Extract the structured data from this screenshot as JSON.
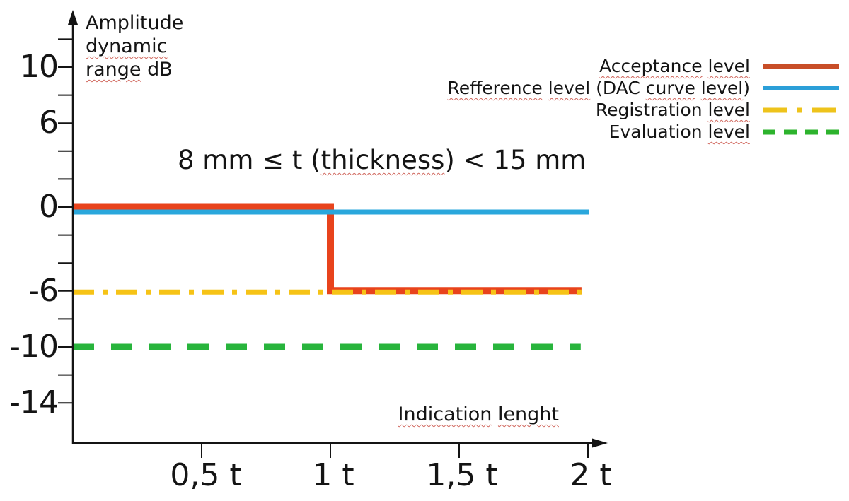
{
  "annotation": {
    "prefix": "8 mm ≤ t (",
    "word": "thickness",
    "suffix": ") < 15 mm"
  },
  "y_axis": {
    "title_line1": "Amplitude",
    "title_line2": "dynamic",
    "title_line3_word": "range",
    "title_line3_rest": " dB",
    "tick_labels": [
      "10",
      "6",
      "0",
      "-6",
      "-10",
      "-14"
    ]
  },
  "x_axis": {
    "tick_labels": [
      "0,5 t",
      "1 t",
      "1,5 t",
      "2 t"
    ],
    "label_word1": "Indication",
    "label_word2": "lenght"
  },
  "legend": {
    "items": [
      {
        "key": "acceptance",
        "t1": "Acceptance",
        "t2": "level",
        "color": "#C84E28",
        "sample_width": 8,
        "sample_dash": []
      },
      {
        "key": "reference",
        "t1": "Refference",
        "t2": "level",
        "t3": "(DAC",
        "t4": "curve",
        "t5": "level",
        "t6": ")",
        "color": "#2B9FD8",
        "sample_width": 6,
        "sample_dash": []
      },
      {
        "key": "registration",
        "t1": "Registration",
        "t2": "level",
        "color": "#EEC31B",
        "sample_width": 7,
        "sample_dash": [
          34,
          14,
          8,
          14
        ]
      },
      {
        "key": "evaluation",
        "t1": "Evaluation",
        "t2": "level",
        "color": "#2DB32D",
        "sample_width": 7,
        "sample_dash": [
          18,
          12
        ]
      }
    ]
  },
  "chart_data": {
    "type": "line",
    "title": "8 mm ≤ t (thickness) < 15 mm",
    "xlabel": "Indication lenght",
    "ylabel": "Amplitude dynamic range dB",
    "xlim": [
      0,
      2
    ],
    "ylim": [
      -14,
      12
    ],
    "x_unit": "t (thickness)",
    "x_ticks": [
      0.5,
      1,
      1.5,
      2
    ],
    "x_tick_labels": [
      "0,5 t",
      "1 t",
      "1,5 t",
      "2 t"
    ],
    "y_tick_step": 2,
    "y_ticks_labeled": [
      10,
      6,
      0,
      -6,
      -10,
      -14
    ],
    "grid": false,
    "legend_position": "top-right",
    "series": [
      {
        "name": "Acceptance level",
        "color": "#E8431C",
        "width": 10,
        "dash": [],
        "render_dy": -0.5,
        "points": [
          [
            0,
            0
          ],
          [
            1,
            0
          ],
          [
            1,
            -6
          ],
          [
            1.975,
            -6
          ]
        ]
      },
      {
        "name": "Refference level (DAC curve level)",
        "color": "#2AA7DC",
        "width": 7,
        "dash": [],
        "render_dy": 7,
        "points": [
          [
            0,
            0
          ],
          [
            2.003,
            0
          ]
        ]
      },
      {
        "name": "Registration level",
        "color": "#F6C316",
        "width": 7,
        "dash": [
          30,
          12,
          7,
          12
        ],
        "render_dy": 1.5,
        "points": [
          [
            0,
            -6
          ],
          [
            1.975,
            -6
          ]
        ]
      },
      {
        "name": "Evaluation level",
        "color": "#28B43C",
        "width": 9,
        "dash": [
          30,
          24
        ],
        "render_dy": 0,
        "points": [
          [
            0,
            -10
          ],
          [
            1.972,
            -10
          ]
        ]
      }
    ]
  }
}
